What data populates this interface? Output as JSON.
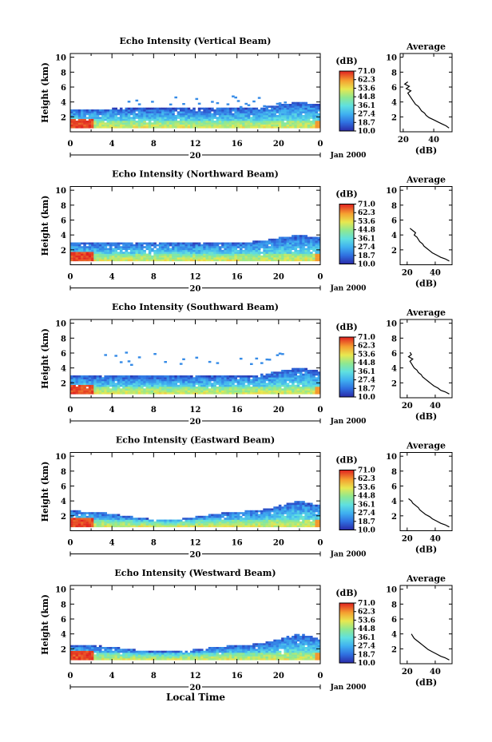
{
  "figure": {
    "xlabel": "Local Time",
    "date_label": "Jan 2000",
    "day_label": "20"
  },
  "chart_data": [
    {
      "type": "heatmap",
      "title": "Echo Intensity (Vertical Beam)",
      "ylabel": "Height (km)",
      "xlabel": "Local Time",
      "x_ticks": [
        "0",
        "4",
        "8",
        "12",
        "16",
        "20",
        "0"
      ],
      "y_ticks": [
        "2",
        "4",
        "6",
        "8",
        "10"
      ],
      "xlim": [
        0,
        24
      ],
      "ylim": [
        0,
        10.5
      ],
      "colorbar": {
        "unit": "(dB)",
        "levels": [
          "71.0",
          "62.3",
          "53.6",
          "44.8",
          "36.1",
          "27.4",
          "18.7",
          "10.0"
        ]
      },
      "profile": {
        "title": "Average",
        "xlabel": "(dB)",
        "x_ticks": [
          "20",
          "40"
        ],
        "xlim": [
          18,
          52
        ],
        "ylim": [
          0,
          10.5
        ],
        "height": [
          0.5,
          0.8,
          1.0,
          1.3,
          1.6,
          1.9,
          2.2,
          2.5,
          2.8,
          3.1,
          3.4,
          3.7,
          4.0,
          4.3,
          4.6,
          4.9,
          5.2,
          5.5,
          5.8,
          6.1,
          6.4,
          6.7
        ],
        "value": [
          50,
          48,
          46,
          43,
          40,
          37,
          35,
          34,
          32,
          31,
          30,
          28,
          27,
          26,
          25,
          24,
          23,
          25,
          22,
          24,
          21,
          23
        ]
      }
    },
    {
      "type": "heatmap",
      "title": "Echo Intensity (Northward Beam)",
      "ylabel": "Height (km)",
      "xlabel": "Local Time",
      "x_ticks": [
        "0",
        "4",
        "8",
        "12",
        "16",
        "20",
        "0"
      ],
      "y_ticks": [
        "2",
        "4",
        "6",
        "8",
        "10"
      ],
      "xlim": [
        0,
        24
      ],
      "ylim": [
        0,
        10.5
      ],
      "colorbar": {
        "unit": "(dB)",
        "levels": [
          "71.0",
          "62.3",
          "53.6",
          "44.8",
          "36.1",
          "27.4",
          "18.7",
          "10.0"
        ]
      },
      "profile": {
        "title": "Average",
        "xlabel": "(dB)",
        "x_ticks": [
          "20",
          "40"
        ],
        "xlim": [
          15,
          52
        ],
        "ylim": [
          0,
          10.5
        ],
        "height": [
          0.5,
          0.8,
          1.0,
          1.3,
          1.6,
          1.9,
          2.2,
          2.5,
          2.8,
          3.1,
          3.4,
          3.7,
          4.0,
          4.3,
          4.6,
          4.9
        ],
        "value": [
          50,
          47,
          44,
          41,
          38,
          36,
          34,
          32,
          31,
          29,
          28,
          27,
          25,
          26,
          24,
          22
        ]
      }
    },
    {
      "type": "heatmap",
      "title": "Echo Intensity (Southward Beam)",
      "ylabel": "Height (km)",
      "xlabel": "Local Time",
      "x_ticks": [
        "0",
        "4",
        "8",
        "12",
        "16",
        "20",
        "0"
      ],
      "y_ticks": [
        "2",
        "4",
        "6",
        "8",
        "10"
      ],
      "xlim": [
        0,
        24
      ],
      "ylim": [
        0,
        10.5
      ],
      "colorbar": {
        "unit": "(dB)",
        "levels": [
          "71.0",
          "62.3",
          "53.6",
          "44.8",
          "36.1",
          "27.4",
          "18.7",
          "10.0"
        ]
      },
      "profile": {
        "title": "Average",
        "xlabel": "(dB)",
        "x_ticks": [
          "20",
          "40"
        ],
        "xlim": [
          15,
          52
        ],
        "ylim": [
          0,
          10.5
        ],
        "height": [
          0.5,
          0.8,
          1.0,
          1.3,
          1.6,
          1.9,
          2.2,
          2.5,
          2.8,
          3.1,
          3.4,
          3.7,
          4.0,
          4.3,
          4.6,
          4.9,
          5.2,
          5.5,
          5.8,
          6.1
        ],
        "value": [
          50,
          47,
          44,
          42,
          39,
          37,
          35,
          33,
          31,
          30,
          28,
          27,
          25,
          24,
          23,
          22,
          24,
          21,
          23,
          22
        ]
      }
    },
    {
      "type": "heatmap",
      "title": "Echo Intensity (Eastward Beam)",
      "ylabel": "Height (km)",
      "xlabel": "Local Time",
      "x_ticks": [
        "0",
        "4",
        "8",
        "12",
        "16",
        "20",
        "0"
      ],
      "y_ticks": [
        "2",
        "4",
        "6",
        "8",
        "10"
      ],
      "xlim": [
        0,
        24
      ],
      "ylim": [
        0,
        10.5
      ],
      "colorbar": {
        "unit": "(dB)",
        "levels": [
          "71.0",
          "62.3",
          "53.6",
          "44.8",
          "36.1",
          "27.4",
          "18.7",
          "10.0"
        ]
      },
      "profile": {
        "title": "Average",
        "xlabel": "(dB)",
        "x_ticks": [
          "20",
          "40"
        ],
        "xlim": [
          15,
          52
        ],
        "ylim": [
          0,
          10.5
        ],
        "height": [
          0.5,
          0.8,
          1.0,
          1.3,
          1.6,
          1.9,
          2.2,
          2.5,
          2.8,
          3.1,
          3.4,
          3.7,
          4.0,
          4.3
        ],
        "value": [
          50,
          47,
          44,
          41,
          38,
          36,
          33,
          31,
          29,
          28,
          26,
          24,
          23,
          21
        ]
      }
    },
    {
      "type": "heatmap",
      "title": "Echo Intensity (Westward Beam)",
      "ylabel": "Height (km)",
      "xlabel": "Local Time",
      "x_ticks": [
        "0",
        "4",
        "8",
        "12",
        "16",
        "20",
        "0"
      ],
      "y_ticks": [
        "2",
        "4",
        "6",
        "8",
        "10"
      ],
      "xlim": [
        0,
        24
      ],
      "ylim": [
        0,
        10.5
      ],
      "colorbar": {
        "unit": "(dB)",
        "levels": [
          "71.0",
          "62.3",
          "53.6",
          "44.8",
          "36.1",
          "27.4",
          "18.7",
          "10.0"
        ]
      },
      "profile": {
        "title": "Average",
        "xlabel": "(dB)",
        "x_ticks": [
          "20",
          "40"
        ],
        "xlim": [
          15,
          52
        ],
        "ylim": [
          0,
          10.5
        ],
        "height": [
          0.5,
          0.8,
          1.0,
          1.3,
          1.6,
          1.9,
          2.2,
          2.5,
          2.8,
          3.1,
          3.4,
          3.7,
          4.0
        ],
        "value": [
          50,
          47,
          44,
          41,
          38,
          35,
          33,
          31,
          29,
          27,
          25,
          24,
          23
        ]
      }
    }
  ]
}
